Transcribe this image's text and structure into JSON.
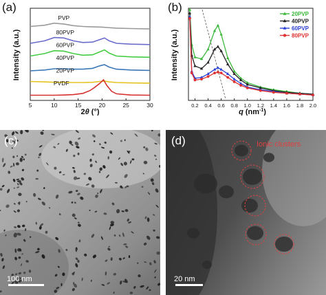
{
  "panels": {
    "a": "(a)",
    "b": "(b)",
    "c": "(c)",
    "d": "(d)"
  },
  "chart_data": [
    {
      "type": "line",
      "panel": "(a)",
      "xlabel_prefix": "2",
      "xlabel_symbol": "θ",
      "xlabel_suffix": " (°)",
      "ylabel": "Intensity (a.u.)",
      "xlim": [
        5,
        30
      ],
      "xticks": [
        "5",
        "10",
        "15",
        "20",
        "25",
        "30"
      ],
      "yticks_shown": false,
      "grid": false,
      "series": [
        {
          "name": "PVP",
          "color": "#9a9a9a",
          "offset": 5,
          "x": [
            5,
            8,
            10,
            12,
            14,
            16,
            18,
            20,
            21,
            23,
            26,
            30
          ],
          "y": [
            0.3,
            0.36,
            0.46,
            0.42,
            0.34,
            0.3,
            0.28,
            0.27,
            0.25,
            0.22,
            0.2,
            0.18
          ]
        },
        {
          "name": "80PVP",
          "color": "#6b6bcc",
          "offset": 4,
          "x": [
            5,
            8,
            10,
            12,
            14,
            16,
            18,
            19.5,
            20.5,
            21.5,
            23,
            26,
            30
          ],
          "y": [
            0.1,
            0.22,
            0.38,
            0.36,
            0.22,
            0.14,
            0.16,
            0.28,
            0.36,
            0.22,
            0.1,
            0.06,
            0.04
          ]
        },
        {
          "name": "60PVP",
          "color": "#44cc44",
          "offset": 3,
          "x": [
            5,
            8,
            10,
            12,
            14,
            16,
            18,
            19.5,
            20.5,
            21.5,
            23,
            26,
            30
          ],
          "y": [
            0.1,
            0.22,
            0.36,
            0.34,
            0.22,
            0.14,
            0.16,
            0.3,
            0.4,
            0.24,
            0.1,
            0.06,
            0.04
          ]
        },
        {
          "name": "40PVP",
          "color": "#3a78b8",
          "offset": 2,
          "x": [
            5,
            8,
            10,
            12,
            14,
            16,
            18,
            19.5,
            20.5,
            21.5,
            23,
            26,
            30
          ],
          "y": [
            0.0,
            0.04,
            0.1,
            0.1,
            0.08,
            0.08,
            0.12,
            0.24,
            0.3,
            0.18,
            0.08,
            0.04,
            0.02
          ]
        },
        {
          "name": "20PVP",
          "color": "#e6c21e",
          "offset": 1,
          "x": [
            5,
            8,
            10,
            12,
            14,
            16,
            18,
            19.5,
            20.5,
            21.5,
            23,
            26,
            30
          ],
          "y": [
            0.1,
            0.08,
            0.06,
            0.06,
            0.05,
            0.05,
            0.06,
            0.1,
            0.12,
            0.08,
            0.05,
            0.03,
            0.02
          ]
        },
        {
          "name": "PVDF",
          "color": "#d63030",
          "offset": 0,
          "x": [
            5,
            8,
            10,
            12,
            14,
            16,
            17.5,
            18.5,
            19.5,
            20.3,
            21,
            22,
            23,
            26,
            30
          ],
          "y": [
            0.05,
            0.05,
            0.05,
            0.06,
            0.08,
            0.14,
            0.28,
            0.44,
            0.62,
            0.8,
            0.52,
            0.24,
            0.12,
            0.06,
            0.05
          ]
        }
      ]
    },
    {
      "type": "line",
      "panel": "(b)",
      "xlabel_symbol": "q",
      "xlabel_unit": " (nm",
      "xlabel_exp": "-1",
      "xlabel_close": ")",
      "ylabel": "Intensity (a.u.)",
      "xlim": [
        0.1,
        2.0
      ],
      "xticks": [
        "0.2",
        "0.4",
        "0.6",
        "0.8",
        "1.0",
        "1.2",
        "1.4",
        "1.6",
        "1.8",
        "2.0"
      ],
      "legend_position": "top-right",
      "grid": false,
      "series": [
        {
          "name": "20PVP",
          "color": "#3cb83c",
          "marker": "triangle",
          "x": [
            0.12,
            0.15,
            0.2,
            0.3,
            0.4,
            0.5,
            0.55,
            0.6,
            0.7,
            0.8,
            0.9,
            1.0,
            1.2,
            1.4,
            1.6,
            1.8,
            2.0
          ],
          "y": [
            1.0,
            0.6,
            0.46,
            0.44,
            0.55,
            0.76,
            0.82,
            0.72,
            0.45,
            0.3,
            0.22,
            0.17,
            0.12,
            0.09,
            0.07,
            0.05,
            0.04
          ]
        },
        {
          "name": "40PVP",
          "color": "#222222",
          "marker": "triangle",
          "x": [
            0.12,
            0.15,
            0.2,
            0.3,
            0.4,
            0.5,
            0.55,
            0.6,
            0.7,
            0.8,
            0.9,
            1.0,
            1.2,
            1.4,
            1.6,
            1.8,
            2.0
          ],
          "y": [
            0.96,
            0.48,
            0.36,
            0.33,
            0.4,
            0.55,
            0.58,
            0.53,
            0.38,
            0.27,
            0.2,
            0.15,
            0.11,
            0.08,
            0.06,
            0.05,
            0.04
          ]
        },
        {
          "name": "60PVP",
          "color": "#2a3fd6",
          "marker": "triangle",
          "x": [
            0.12,
            0.15,
            0.2,
            0.3,
            0.4,
            0.5,
            0.55,
            0.6,
            0.7,
            0.8,
            0.9,
            1.0,
            1.2,
            1.4,
            1.6,
            1.8,
            2.0
          ],
          "y": [
            0.92,
            0.3,
            0.22,
            0.23,
            0.27,
            0.32,
            0.34,
            0.32,
            0.27,
            0.21,
            0.16,
            0.12,
            0.09,
            0.07,
            0.05,
            0.04,
            0.03
          ]
        },
        {
          "name": "80PVP",
          "color": "#e03030",
          "marker": "circle",
          "x": [
            0.12,
            0.15,
            0.2,
            0.3,
            0.4,
            0.5,
            0.55,
            0.6,
            0.7,
            0.8,
            0.9,
            1.0,
            1.2,
            1.4,
            1.6,
            1.8,
            2.0
          ],
          "y": [
            0.9,
            0.28,
            0.2,
            0.21,
            0.24,
            0.28,
            0.29,
            0.28,
            0.23,
            0.18,
            0.14,
            0.11,
            0.08,
            0.06,
            0.05,
            0.04,
            0.03
          ]
        }
      ]
    }
  ],
  "tem": {
    "c": {
      "scale": "100 nm"
    },
    "d": {
      "scale": "20 nm",
      "annotation": "Ionic clusters",
      "annotation_color": "#e04040"
    }
  }
}
